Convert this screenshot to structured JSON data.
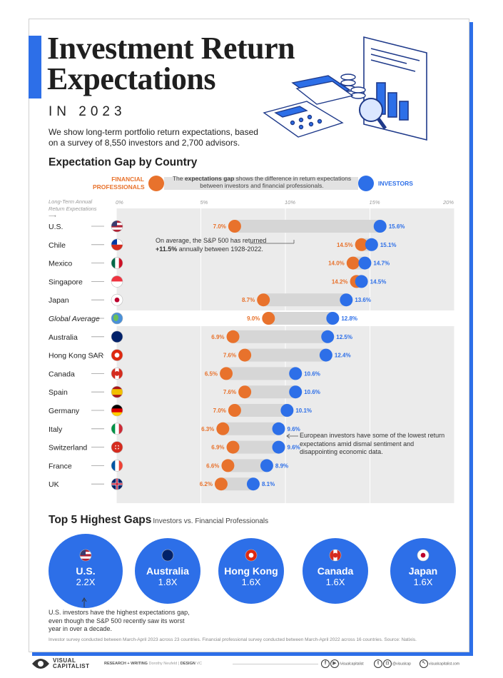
{
  "title": "Investment Return Expectations",
  "subtitle": "IN 2023",
  "intro": "We show long-term portfolio return expectations, based on a survey of 8,550 investors and 2,700 advisors.",
  "section_title": "Expectation Gap by Country",
  "legend": {
    "financial_professionals": "FINANCIAL PROFESSIONALS",
    "middle_text_pre": "The ",
    "middle_text_bold": "expectations gap",
    "middle_text_post": " shows the difference in return expectations between investors and financial professionals.",
    "investors": "INVESTORS"
  },
  "axis_caption": "Long-Term Annual Return Expectations",
  "colors": {
    "orange": "#e8722c",
    "blue": "#2d6fe8",
    "band": "#ebebeb",
    "bar": "#d6d6d6"
  },
  "chart_data": {
    "type": "dumbbell",
    "x_ticks": [
      "0%",
      "5%",
      "10%",
      "15%",
      "20%"
    ],
    "xlim": [
      0,
      20
    ],
    "series": [
      {
        "name": "Financial Professionals",
        "color": "#e8722c"
      },
      {
        "name": "Investors",
        "color": "#2d6fe8"
      }
    ],
    "rows": [
      {
        "country": "U.S.",
        "pro": 7.0,
        "inv": 15.6,
        "pro_label": "7.0%",
        "inv_label": "15.6%",
        "flag": "us"
      },
      {
        "country": "Chile",
        "pro": 14.5,
        "inv": 15.1,
        "pro_label": "14.5%",
        "inv_label": "15.1%",
        "flag": "cl"
      },
      {
        "country": "Mexico",
        "pro": 14.0,
        "inv": 14.7,
        "pro_label": "14.0%",
        "inv_label": "14.7%",
        "flag": "mx"
      },
      {
        "country": "Singapore",
        "pro": 14.2,
        "inv": 14.5,
        "pro_label": "14.2%",
        "inv_label": "14.5%",
        "flag": "sg"
      },
      {
        "country": "Japan",
        "pro": 8.7,
        "inv": 13.6,
        "pro_label": "8.7%",
        "inv_label": "13.6%",
        "flag": "jp"
      },
      {
        "country": "Global Average",
        "pro": 9.0,
        "inv": 12.8,
        "pro_label": "9.0%",
        "inv_label": "12.8%",
        "flag": "globe",
        "italic": true
      },
      {
        "country": "Australia",
        "pro": 6.9,
        "inv": 12.5,
        "pro_label": "6.9%",
        "inv_label": "12.5%",
        "flag": "au"
      },
      {
        "country": "Hong Kong SAR",
        "pro": 7.6,
        "inv": 12.4,
        "pro_label": "7.6%",
        "inv_label": "12.4%",
        "flag": "hk"
      },
      {
        "country": "Canada",
        "pro": 6.5,
        "inv": 10.6,
        "pro_label": "6.5%",
        "inv_label": "10.6%",
        "flag": "ca"
      },
      {
        "country": "Spain",
        "pro": 7.6,
        "inv": 10.6,
        "pro_label": "7.6%",
        "inv_label": "10.6%",
        "flag": "es"
      },
      {
        "country": "Germany",
        "pro": 7.0,
        "inv": 10.1,
        "pro_label": "7.0%",
        "inv_label": "10.1%",
        "flag": "de"
      },
      {
        "country": "Italy",
        "pro": 6.3,
        "inv": 9.6,
        "pro_label": "6.3%",
        "inv_label": "9.6%",
        "flag": "it"
      },
      {
        "country": "Switzerland",
        "pro": 6.9,
        "inv": 9.6,
        "pro_label": "6.9%",
        "inv_label": "9.6%",
        "flag": "ch"
      },
      {
        "country": "France",
        "pro": 6.6,
        "inv": 8.9,
        "pro_label": "6.6%",
        "inv_label": "8.9%",
        "flag": "fr"
      },
      {
        "country": "UK",
        "pro": 6.2,
        "inv": 8.1,
        "pro_label": "6.2%",
        "inv_label": "8.1%",
        "flag": "gb"
      }
    ]
  },
  "annotations": {
    "sp500_pre": "On average, the S&P 500 has returned ",
    "sp500_bold": "+11.5%",
    "sp500_post": " annually between 1928-2022.",
    "europe": "European investors have some of the lowest return expectations amid dismal sentiment and disappointing economic data."
  },
  "top5": {
    "title": "Top 5 Highest Gaps",
    "subtitle": "Investors vs. Financial Professionals",
    "items": [
      {
        "name": "U.S.",
        "value": "2.2X",
        "flag": "us"
      },
      {
        "name": "Australia",
        "value": "1.8X",
        "flag": "au"
      },
      {
        "name": "Hong Kong",
        "value": "1.6X",
        "flag": "hk"
      },
      {
        "name": "Canada",
        "value": "1.6X",
        "flag": "ca"
      },
      {
        "name": "Japan",
        "value": "1.6X",
        "flag": "jp"
      }
    ],
    "us_note": "U.S. investors have the highest expectations gap, even though the S&P 500 recently saw its worst year in over a decade."
  },
  "source": "Investor survey conducted between March-April 2023 across 23 countries. Financial professional survey conducted between March-April 2022 across 16 countries. Source: Natixis.",
  "footer": {
    "logo_top": "VISUAL",
    "logo_bottom": "CAPITALIST",
    "research_label": "RESEARCH + WRITING",
    "research_name": "Dorothy Neufeld",
    "sep": "|",
    "design_label": "DESIGN",
    "design_name": "VC",
    "social1": "/visualcapitalist",
    "social2": "@visualcap",
    "social3": "visualcapitalist.com"
  }
}
